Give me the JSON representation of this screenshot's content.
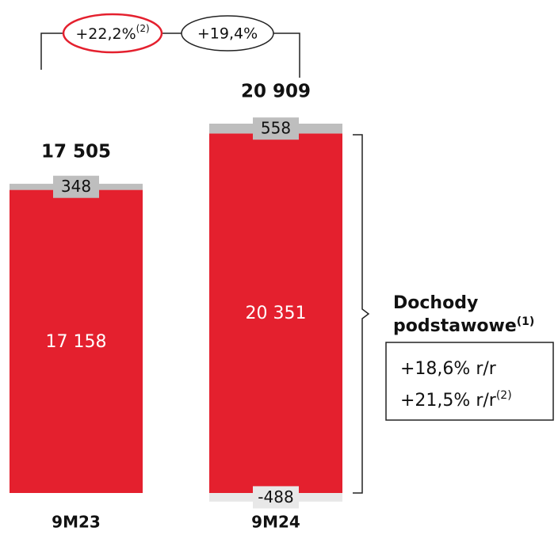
{
  "chart_data": {
    "type": "bar",
    "stacked": true,
    "categories": [
      "9M23",
      "9M24"
    ],
    "series": [
      {
        "color": "#e4202e",
        "values": [
          17158,
          20351
        ],
        "value_labels": [
          "17 158",
          "20 351"
        ]
      },
      {
        "color": "#bebebe",
        "values": [
          348,
          558
        ],
        "value_labels": [
          "348",
          "558"
        ]
      },
      {
        "color": "#e8e8e8",
        "values": [
          null,
          -488
        ],
        "value_labels": [
          null,
          "-488"
        ]
      }
    ],
    "totals": [
      17505,
      20909
    ],
    "total_labels": [
      "17 505",
      "20 909"
    ],
    "growth": [
      {
        "label": "+22,2%",
        "note": "(2)",
        "color": "#e4202e"
      },
      {
        "label": "+19,4%",
        "color": "#222222"
      }
    ],
    "core_income": {
      "title": [
        "Dochody",
        "podstawowe"
      ],
      "note": "(1)",
      "lines": [
        {
          "text": "+18,6% r/r"
        },
        {
          "text": "+21,5% r/r",
          "note": "(2)"
        }
      ]
    }
  }
}
